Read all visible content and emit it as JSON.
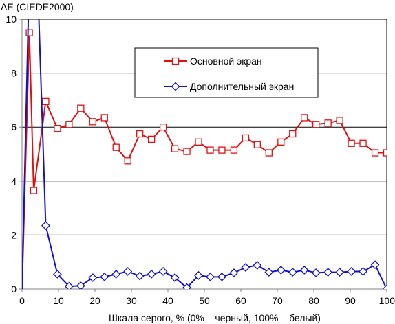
{
  "chart_data": {
    "type": "line",
    "title": "",
    "ylabel": "ΔE (CIEDE2000)",
    "xlabel": "Шкала серого, % (0% – черный, 100% – белый)",
    "xlim": [
      0,
      100
    ],
    "ylim": [
      0,
      10
    ],
    "xticks": [
      0,
      10,
      20,
      30,
      40,
      50,
      60,
      70,
      80,
      90,
      100
    ],
    "yticks": [
      0,
      2,
      4,
      6,
      8,
      10
    ],
    "xtick_labels": [
      "0",
      "10",
      "20",
      "30",
      "40",
      "50",
      "60",
      "70",
      "80",
      "90",
      "100"
    ],
    "ytick_labels": [
      "0",
      "2",
      "4",
      "6",
      "8",
      "10"
    ],
    "grid": "horizontal",
    "legend_position": "top-right",
    "series": [
      {
        "name": "Основной экран",
        "color": "#dd1111",
        "marker": "square",
        "x": [
          0,
          2,
          3.2,
          6.5,
          9.7,
          12.9,
          16.1,
          19.4,
          22.6,
          25.8,
          29.0,
          32.3,
          35.5,
          38.7,
          41.9,
          45.2,
          48.4,
          51.6,
          54.8,
          58.1,
          61.3,
          64.5,
          67.7,
          71.0,
          74.2,
          77.4,
          80.6,
          83.9,
          87.1,
          90.3,
          93.5,
          96.8,
          100
        ],
        "y": [
          0,
          9.5,
          3.65,
          6.95,
          5.95,
          6.1,
          6.7,
          6.2,
          6.35,
          5.25,
          4.75,
          5.75,
          5.55,
          6.0,
          5.2,
          5.1,
          5.45,
          5.15,
          5.15,
          5.15,
          5.6,
          5.35,
          5.05,
          5.45,
          5.75,
          6.35,
          6.1,
          6.15,
          6.25,
          5.4,
          5.4,
          5.05,
          5.05
        ]
      },
      {
        "name": "Дополнительный экран",
        "color": "#1111cc",
        "marker": "diamond",
        "x": [
          0,
          1.8,
          4.5,
          6.5,
          9.7,
          12.9,
          16.1,
          19.4,
          22.6,
          25.8,
          29.0,
          32.3,
          35.5,
          38.7,
          41.9,
          45.2,
          48.4,
          51.6,
          54.8,
          58.1,
          61.3,
          64.5,
          67.7,
          71.0,
          74.2,
          77.4,
          80.6,
          83.9,
          87.1,
          90.3,
          93.5,
          96.8,
          100
        ],
        "y": [
          0,
          10.5,
          10.5,
          2.35,
          0.55,
          0.1,
          0.12,
          0.42,
          0.45,
          0.55,
          0.65,
          0.48,
          0.55,
          0.65,
          0.42,
          0.05,
          0.5,
          0.45,
          0.45,
          0.6,
          0.8,
          0.88,
          0.62,
          0.7,
          0.62,
          0.7,
          0.6,
          0.62,
          0.62,
          0.65,
          0.65,
          0.9,
          0.0
        ]
      }
    ]
  }
}
